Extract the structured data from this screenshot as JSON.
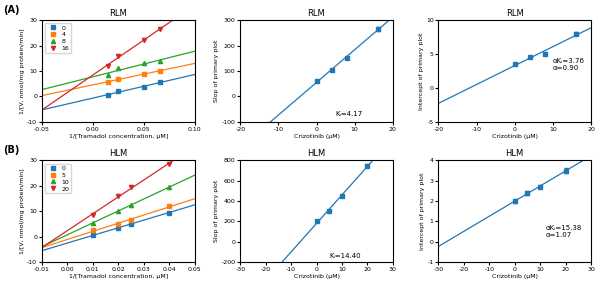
{
  "panel_labels": [
    "(A)",
    "(B)"
  ],
  "chart_data": [
    {
      "type": "scatter",
      "title": "RLM",
      "x_label": "1/[Tramadol concentration, μM]",
      "y_label": "1/[V, nmol/mg protein/min]",
      "xlim": [
        -0.05,
        0.1
      ],
      "ylim": [
        -10,
        30
      ],
      "xticks": [
        {
          "value": -0.05,
          "label": "-0.05"
        },
        {
          "value": 0,
          "label": "0.00"
        },
        {
          "value": 0.05,
          "label": "0.05"
        },
        {
          "value": 0.1,
          "label": "0.10"
        }
      ],
      "yticks": [
        -10,
        0,
        10,
        20,
        30
      ],
      "grid": false,
      "legend": "upper left",
      "series": [
        {
          "name": "0",
          "marker": "square",
          "x": [
            0.015,
            0.025,
            0.05,
            0.066
          ],
          "values": [
            0.5,
            2.0,
            3.8,
            5.5
          ],
          "fit": {
            "x": [
              -0.05,
              0.1
            ],
            "y": [
              -5.297041,
              8.602466
            ]
          }
        },
        {
          "name": "4",
          "marker": "square",
          "x": [
            0.015,
            0.025,
            0.05,
            0.066
          ],
          "values": [
            5.5,
            7.0,
            8.8,
            10.0
          ],
          "fit": {
            "x": [
              -0.05,
              0.1
            ],
            "y": [
              0.318712,
              12.96976
            ]
          }
        },
        {
          "name": "8",
          "marker": "triangle_up",
          "x": [
            0.015,
            0.025,
            0.05,
            0.066
          ],
          "values": [
            8.5,
            11.0,
            13.0,
            14.0
          ],
          "fit": {
            "x": [
              -0.05,
              0.1
            ],
            "y": [
              2.681103,
              17.755086
            ]
          }
        },
        {
          "name": "16",
          "marker": "triangle_down",
          "x": [
            0.015,
            0.025,
            0.05,
            0.066
          ],
          "values": [
            12.0,
            16.0,
            22.0,
            26.5
          ],
          "fit": {
            "x": [
              -0.05,
              0.0785943
            ],
            "y": [
              -5.319821,
              30
            ]
          }
        }
      ]
    },
    {
      "type": "scatter",
      "title": "RLM",
      "x_label": "Crizotinib (μM)",
      "y_label": "Slop of primary plot",
      "xlim": [
        -20,
        20
      ],
      "ylim": [
        -100,
        300
      ],
      "xticks": [
        -20,
        -10,
        0,
        10,
        20
      ],
      "yticks": [
        -100,
        0,
        100,
        200,
        300
      ],
      "grid": false,
      "annotations": [
        {
          "text": "Kᵢ=4.17",
          "x": 5,
          "y": -70
        }
      ],
      "series": [
        {
          "marker": "square",
          "x": [
            0,
            4,
            8,
            16
          ],
          "values": [
            60,
            105,
            150,
            265
          ],
          "errors": [
            4,
            4,
            4,
            7
          ],
          "fit": {
            "x": [
              -12.055556,
              19.055556
            ],
            "y": [
              -100,
              300
            ]
          }
        }
      ]
    },
    {
      "type": "scatter",
      "title": "RLM",
      "x_label": "Crizotinib (μM)",
      "y_label": "Intercept of primary plot",
      "xlim": [
        -20,
        20
      ],
      "ylim": [
        -5,
        10
      ],
      "xticks": [
        -20,
        -10,
        0,
        10,
        20
      ],
      "yticks": [
        -5,
        0,
        5,
        10
      ],
      "grid": false,
      "annotations": [
        {
          "text": "αKᵢ=3.76\nα=0.90",
          "x": 10,
          "y": 3.5
        }
      ],
      "series": [
        {
          "marker": "square",
          "x": [
            0,
            4,
            8,
            16
          ],
          "values": [
            3.5,
            4.5,
            5.0,
            8.0
          ],
          "errors": [
            0.15,
            0.15,
            0.15,
            0.25
          ],
          "fit": {
            "x": [
              -20,
              20
            ],
            "y": [
              -2.271429,
              8.871429
            ]
          }
        }
      ]
    },
    {
      "type": "scatter",
      "title": "HLM",
      "x_label": "1/[Tramadol concentration, μM]",
      "y_label": "1/[V, nmol/mg protein/min]",
      "xlim": [
        -0.01,
        0.05
      ],
      "ylim": [
        -10,
        30
      ],
      "xticks": [
        -0.01,
        {
          "value": 0,
          "label": "0.00"
        },
        0.01,
        0.02,
        0.03,
        0.04,
        0.05
      ],
      "yticks": [
        -10,
        0,
        10,
        20,
        30
      ],
      "grid": false,
      "legend": "upper left",
      "series": [
        {
          "name": "0",
          "marker": "square",
          "x": [
            0.01,
            0.02,
            0.025,
            0.04
          ],
          "values": [
            0.5,
            3.5,
            5.0,
            9.5
          ],
          "fit": {
            "x": [
              -0.01,
              0.05
            ],
            "y": [
              -5.5,
              12.5
            ]
          }
        },
        {
          "name": "5",
          "marker": "square",
          "x": [
            0.01,
            0.02,
            0.025,
            0.04
          ],
          "values": [
            2.5,
            5.0,
            6.5,
            12.0
          ],
          "fit": {
            "x": [
              -0.01,
              0.05
            ],
            "y": [
              -4.3,
              14.9
            ]
          }
        },
        {
          "name": "10",
          "marker": "triangle_up",
          "x": [
            0.01,
            0.02,
            0.025,
            0.04
          ],
          "values": [
            5.5,
            10.0,
            12.5,
            19.5
          ],
          "fit": {
            "x": [
              -0.01,
              0.05
            ],
            "y": [
              -3.92,
              24.16
            ]
          }
        },
        {
          "name": "20",
          "marker": "triangle_down",
          "x": [
            0.01,
            0.02,
            0.025,
            0.04
          ],
          "values": [
            8.5,
            16.0,
            19.5,
            28.5
          ],
          "fit": {
            "x": [
              -0.01,
              0.04167
            ],
            "y": [
              -4.24,
              30
            ]
          }
        }
      ]
    },
    {
      "type": "scatter",
      "title": "HLM",
      "x_label": "Crizotinib (μM)",
      "y_label": "Slop of primary plot",
      "xlim": [
        -30,
        30
      ],
      "ylim": [
        -200,
        800
      ],
      "xticks": [
        -30,
        -20,
        -10,
        0,
        10,
        20,
        30
      ],
      "yticks": [
        -200,
        0,
        200,
        400,
        600,
        800
      ],
      "grid": false,
      "annotations": [
        {
          "text": "Kᵢ=14.40",
          "x": 5,
          "y": -140
        }
      ],
      "series": [
        {
          "marker": "square",
          "x": [
            0,
            5,
            10,
            20
          ],
          "values": [
            200,
            300,
            450,
            750
          ],
          "errors": [
            10,
            10,
            12,
            18
          ],
          "fit": {
            "x": [
              -13.571429,
              22.142857
            ],
            "y": [
              -200,
              800
            ]
          }
        }
      ]
    },
    {
      "type": "scatter",
      "title": "HLM",
      "x_label": "Crizotinib (μM)",
      "y_label": "Intercept of primary plot",
      "xlim": [
        -30,
        30
      ],
      "ylim": [
        -1,
        4
      ],
      "xticks": [
        -30,
        -20,
        -10,
        0,
        10,
        20,
        30
      ],
      "yticks": [
        -1,
        0,
        1,
        2,
        3,
        4
      ],
      "grid": false,
      "annotations": [
        {
          "text": "αKᵢ=15.38\nα=1.07",
          "x": 12,
          "y": 0.5
        }
      ],
      "series": [
        {
          "marker": "square",
          "x": [
            0,
            5,
            10,
            20
          ],
          "values": [
            2.0,
            2.4,
            2.7,
            3.5
          ],
          "errors": [
            0.08,
            0.08,
            0.08,
            0.12
          ],
          "fit": {
            "x": [
              -30,
              26.923077
            ],
            "y": [
              -0.228571,
              4
            ]
          }
        }
      ]
    }
  ]
}
